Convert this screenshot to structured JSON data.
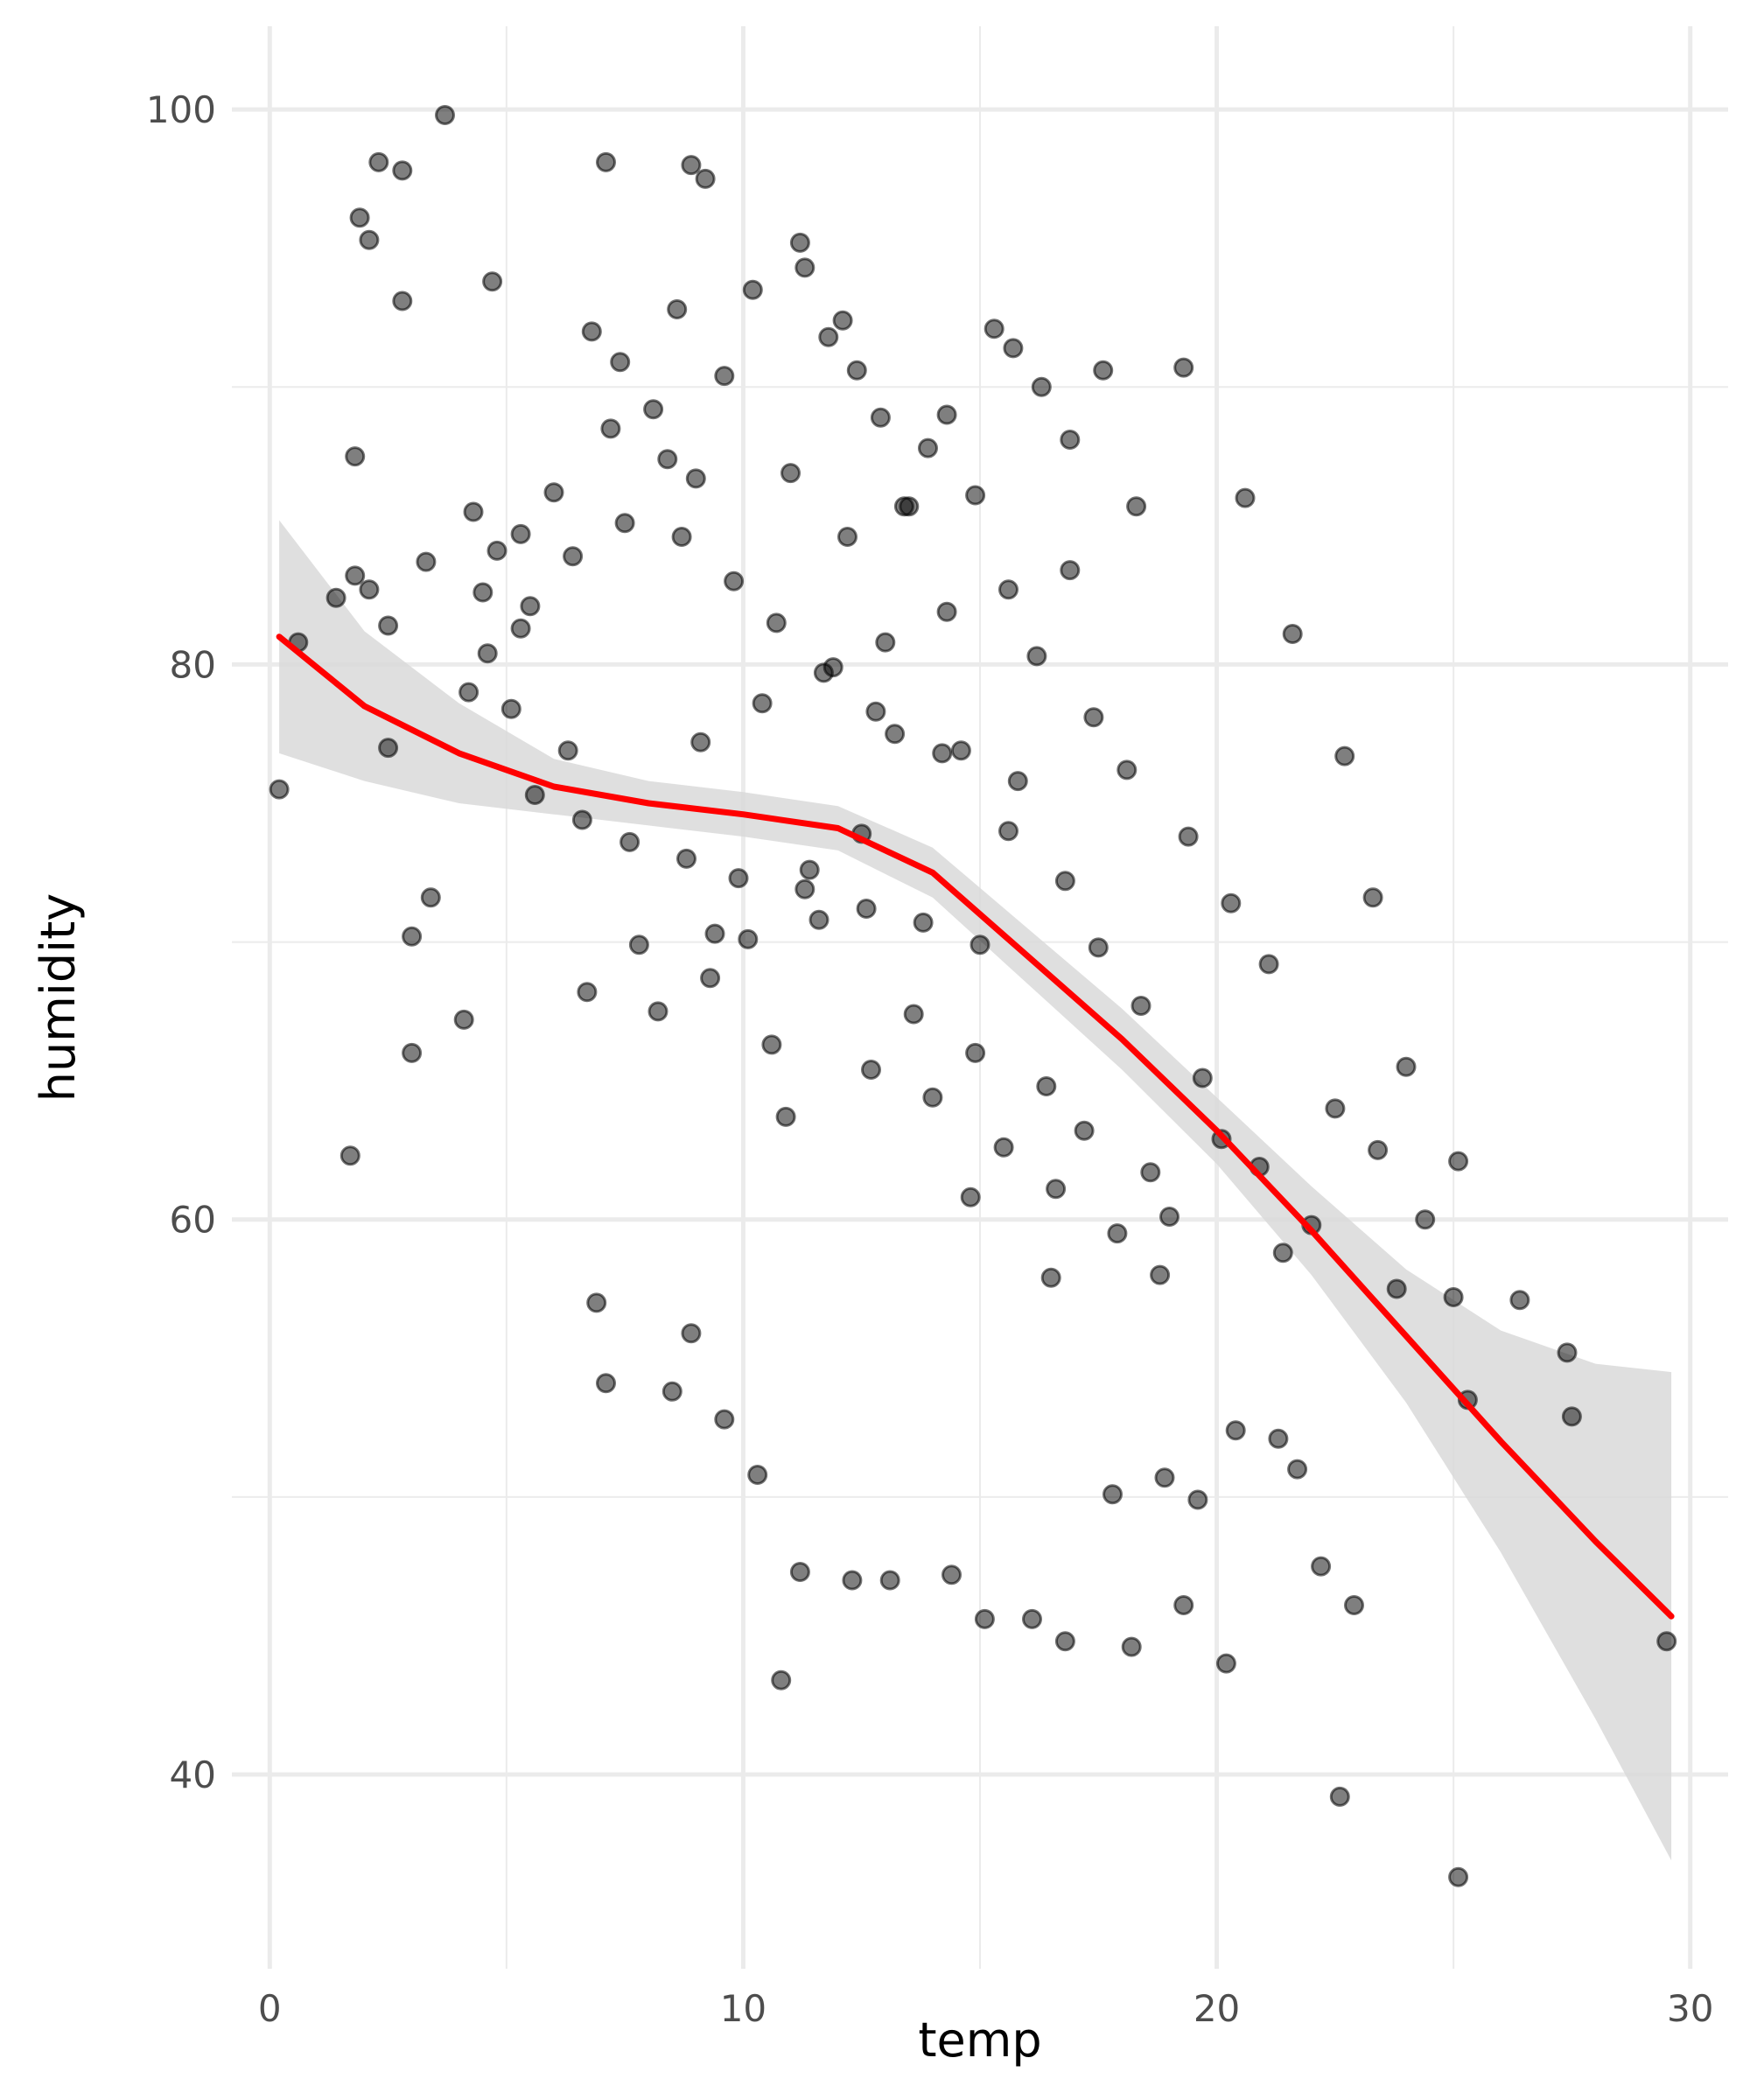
{
  "chart_data": {
    "type": "scatter",
    "xlabel": "temp",
    "ylabel": "humidity",
    "xlim": [
      -0.8,
      30.8
    ],
    "ylim": [
      33,
      103
    ],
    "x_ticks": [
      0,
      10,
      20,
      30
    ],
    "y_ticks": [
      40,
      60,
      80,
      100
    ],
    "grid": true,
    "legend": "none",
    "colors": {
      "points": "#000000",
      "smooth_line": "#ff0000",
      "confidence_band": "#d9d9d9",
      "grid": "#ebebeb",
      "tick_label": "#4d4d4d"
    },
    "smooth_line": {
      "x": [
        0.2,
        2,
        4,
        6,
        8,
        10,
        12,
        14,
        16,
        18,
        20,
        22,
        24,
        26,
        28,
        29.6
      ],
      "y": [
        81.0,
        78.5,
        76.8,
        75.6,
        75.0,
        74.6,
        74.1,
        72.5,
        69.5,
        66.5,
        63.2,
        59.6,
        55.8,
        52.0,
        48.4,
        45.7
      ]
    },
    "confidence_band": {
      "x": [
        0.2,
        2,
        4,
        6,
        8,
        10,
        12,
        14,
        16,
        18,
        20,
        22,
        24,
        26,
        28,
        29.6
      ],
      "upper": [
        85.2,
        81.2,
        78.6,
        76.6,
        75.8,
        75.4,
        74.9,
        73.4,
        70.5,
        67.6,
        64.4,
        61.2,
        58.2,
        56.0,
        54.8,
        54.5
      ],
      "lower": [
        76.8,
        75.8,
        75.0,
        74.6,
        74.2,
        73.8,
        73.3,
        71.6,
        68.5,
        65.4,
        62.0,
        58.0,
        53.4,
        48.0,
        42.0,
        36.9
      ]
    },
    "points": {
      "x": [
        3.7,
        2.3,
        2.8,
        7.1,
        8.9,
        9.2,
        1.9,
        2.1,
        4.7,
        2.8,
        1.4,
        0.6,
        1.8,
        2.1,
        2.5,
        0.2,
        2.5,
        3.0,
        1.7,
        1.8,
        4.3,
        4.8,
        5.3,
        3.3,
        6.8,
        7.4,
        8.1,
        8.6,
        9.0,
        9.6,
        10.2,
        11.2,
        11.3,
        11.8,
        12.1,
        12.4,
        12.9,
        13.4,
        13.9,
        14.3,
        14.9,
        15.3,
        15.7,
        16.3,
        16.9,
        17.6,
        18.3,
        19.3,
        20.6,
        21.6,
        22.7,
        23.3,
        24.0,
        25.1,
        25.3,
        27.4,
        27.5,
        29.5,
        25.1,
        22.6,
        15.1,
        16.1,
        16.8,
        18.2,
        20.2,
        10.8,
        13.1,
        12.3,
        14.4,
        11.2,
        9.6,
        8.5,
        7.1,
        6.9,
        8.9,
        10.3,
        18.9,
        19.3,
        17.8,
        19.6,
        20.4,
        21.3,
        21.7,
        22.2,
        22.9,
        23.8,
        24.4,
        25.0,
        26.4,
        21.4,
        22.0,
        20.9,
        22.5,
        23.4,
        4.2,
        5.1,
        6.3,
        5.6,
        3.4,
        3.0,
        4.1,
        6.7,
        9.4,
        11.6,
        13.6,
        14.9,
        16.4,
        17.2,
        18.6,
        19.0,
        20.1,
        19.7,
        18.4,
        17.5,
        16.8,
        15.6,
        14.2,
        12.8,
        11.9,
        10.7,
        9.8,
        8.7,
        7.5,
        6.4,
        5.5,
        4.6,
        13.2,
        14.6,
        15.8,
        12.5,
        11.4,
        10.1,
        9.3,
        8.2,
        7.8,
        10.6,
        12.7,
        14.0,
        15.5,
        16.6,
        17.9,
        18.8,
        9.1,
        10.4,
        11.7,
        13.0,
        14.3,
        15.6,
        16.9,
        12.2,
        13.5,
        11.0,
        8.4,
        7.2,
        6.0,
        5.3,
        4.5,
        16.2,
        17.4,
        18.1,
        19.4,
        20.3,
        21.1,
        15.0,
        13.8,
        12.6,
        11.3,
        9.9,
        8.8,
        7.6,
        6.6,
        10.9,
        14.8,
        16.5
      ],
      "y": [
        99.8,
        98.1,
        97.8,
        98.1,
        98.0,
        97.5,
        96.1,
        95.3,
        93.8,
        93.1,
        82.4,
        80.8,
        83.2,
        82.7,
        81.4,
        75.5,
        77.0,
        70.2,
        62.3,
        87.5,
        85.5,
        84.1,
        81.3,
        83.7,
        92.0,
        90.9,
        89.2,
        92.8,
        86.7,
        90.4,
        93.5,
        95.2,
        94.3,
        91.8,
        92.4,
        90.6,
        88.9,
        85.7,
        87.8,
        89.0,
        86.1,
        92.1,
        91.4,
        90.0,
        88.1,
        90.6,
        85.7,
        90.7,
        86.0,
        81.1,
        76.7,
        71.6,
        65.5,
        62.1,
        53.5,
        55.2,
        52.9,
        44.8,
        36.3,
        39.2,
        45.6,
        45.6,
        44.8,
        44.6,
        44.0,
        43.4,
        47.0,
        47.0,
        47.2,
        47.3,
        52.8,
        53.8,
        54.1,
        57.0,
        55.9,
        50.8,
        50.7,
        46.1,
        50.1,
        49.9,
        52.4,
        52.1,
        51.0,
        47.5,
        46.1,
        57.5,
        60.0,
        57.2,
        57.1,
        58.8,
        59.8,
        61.9,
        64.0,
        62.5,
        79.0,
        78.4,
        76.9,
        75.3,
        71.6,
        66.0,
        67.2,
        68.2,
        70.3,
        70.8,
        67.4,
        66.0,
        64.8,
        63.2,
        61.7,
        60.1,
        62.9,
        65.1,
        67.7,
        69.8,
        72.2,
        74.0,
        76.8,
        78.3,
        79.9,
        81.5,
        83.0,
        84.6,
        85.1,
        83.9,
        82.1,
        80.4,
        77.5,
        76.9,
        75.8,
        73.9,
        72.6,
        70.1,
        68.7,
        67.5,
        69.9,
        66.3,
        65.4,
        64.4,
        62.6,
        61.1,
        59.5,
        58.0,
        77.2,
        78.6,
        79.7,
        80.8,
        81.9,
        82.7,
        83.4,
        84.6,
        85.7,
        86.9,
        87.4,
        88.5,
        86.2,
        84.7,
        82.6,
        80.3,
        78.1,
        76.2,
        73.8,
        71.4,
        69.2,
        69.9,
        70.7,
        71.2,
        71.9,
        72.3,
        73.0,
        73.6,
        74.4,
        63.7,
        60.8,
        57.9
      ]
    }
  }
}
